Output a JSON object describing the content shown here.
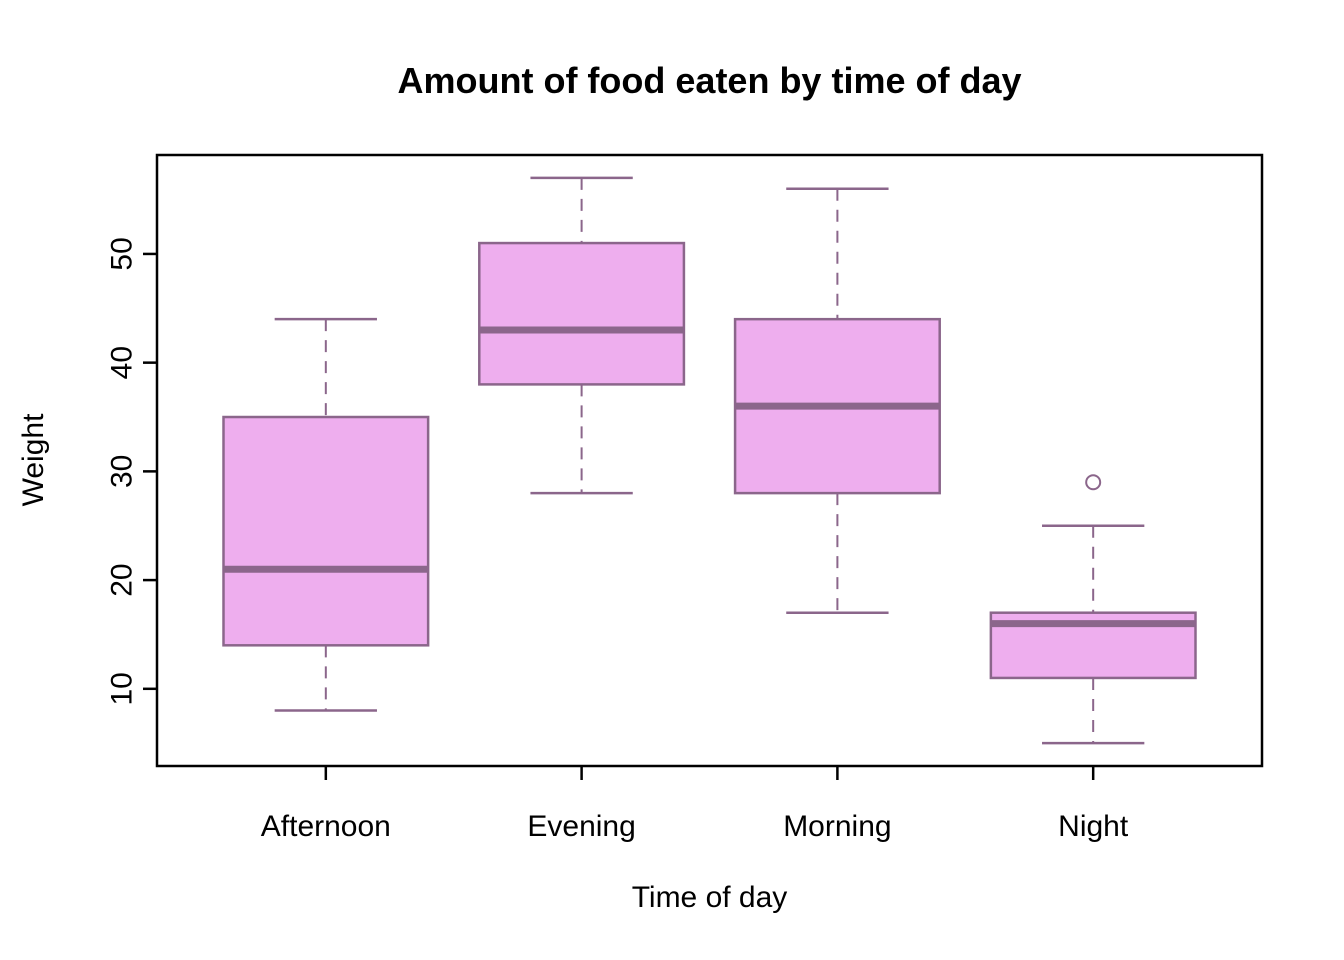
{
  "title": "Amount of food eaten by time of day",
  "chart_data": {
    "type": "boxplot",
    "title": "Amount of food eaten by time of day",
    "xlabel": "Time of day",
    "ylabel": "Weight",
    "categories": [
      "Afternoon",
      "Evening",
      "Morning",
      "Night"
    ],
    "series": [
      {
        "name": "Afternoon",
        "min": 8,
        "q1": 14,
        "median": 21,
        "q3": 35,
        "max": 44,
        "outliers": []
      },
      {
        "name": "Evening",
        "min": 28,
        "q1": 38,
        "median": 43,
        "q3": 51,
        "max": 57,
        "outliers": []
      },
      {
        "name": "Morning",
        "min": 17,
        "q1": 28,
        "median": 36,
        "q3": 44,
        "max": 56,
        "outliers": []
      },
      {
        "name": "Night",
        "min": 5,
        "q1": 11,
        "median": 16,
        "q3": 17,
        "max": 25,
        "outliers": [
          29
        ]
      }
    ],
    "y_ticks": [
      10,
      20,
      30,
      40,
      50
    ],
    "ylim": [
      2.9,
      59.1
    ],
    "grid": false,
    "legend": "none",
    "colors": {
      "box_fill": "#EEAEEE",
      "box_border": "#8B668B",
      "median": "#8B668B",
      "whisker": "#8B668B",
      "axis": "#000000",
      "text": "#000000",
      "background": "#FFFFFF"
    }
  }
}
